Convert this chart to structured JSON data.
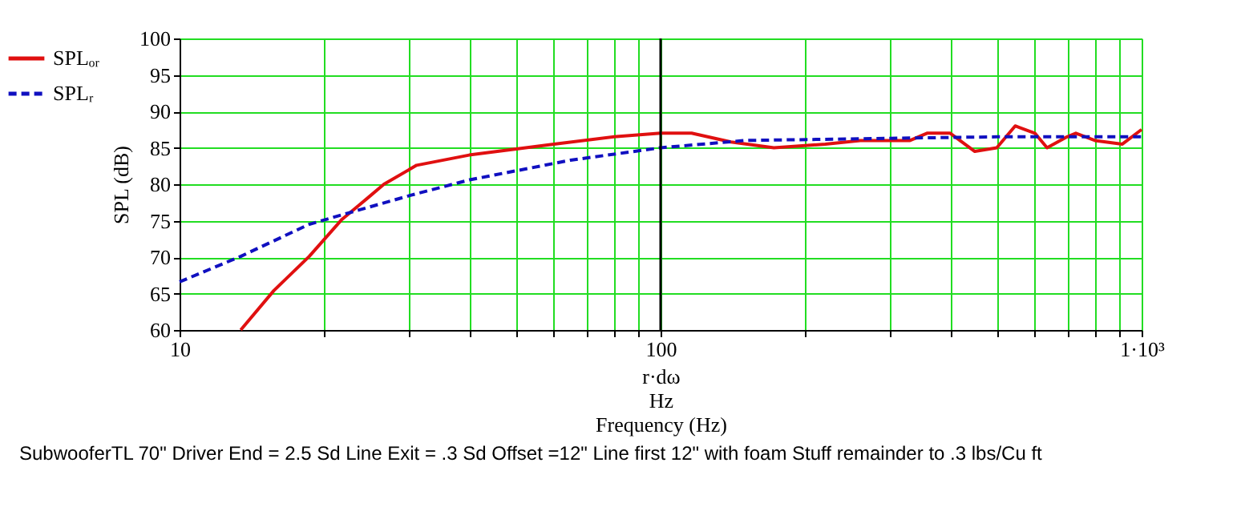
{
  "chart_data": {
    "type": "line",
    "xlabel": "r·dω\nHz\nFrequency (Hz)",
    "ylabel": "SPL (dB)",
    "annotations": [
      "SubwooferTL  70\" Driver End = 2.5 Sd Line Exit = .3 Sd Offset =12\" Line first 12\" with foam Stuff remainder to .3 lbs/Cu ft"
    ],
    "log": "x",
    "grid": true,
    "legend": "left",
    "marker": "none",
    "xlim": [
      10,
      1000
    ],
    "ylim": [
      60,
      100
    ],
    "xticks": [
      10,
      {
        "value": 20,
        "label": null
      },
      {
        "value": 30,
        "label": null
      },
      {
        "value": 40,
        "label": null
      },
      {
        "value": 50,
        "label": null
      },
      {
        "value": 60,
        "label": null
      },
      {
        "value": 70,
        "label": null
      },
      {
        "value": 80,
        "label": null
      },
      {
        "value": 90,
        "label": null
      },
      100,
      {
        "value": 200,
        "label": null
      },
      {
        "value": 300,
        "label": null
      },
      {
        "value": 400,
        "label": null
      },
      {
        "value": 500,
        "label": null
      },
      {
        "value": 600,
        "label": null
      },
      {
        "value": 700,
        "label": null
      },
      {
        "value": 800,
        "label": null
      },
      {
        "value": 900,
        "label": null
      },
      {
        "value": 1000,
        "label": "1·10³"
      }
    ],
    "yticks": [
      60,
      65,
      70,
      75,
      80,
      85,
      90,
      95,
      100
    ],
    "ref_lines": [
      {
        "axis": "x",
        "value": 100,
        "color": "#000000"
      }
    ],
    "series": [
      {
        "name": "SPLₒᵣ",
        "color": "#e01010",
        "line_style": "solid",
        "x": [
          13.4,
          15.7,
          18.6,
          21.7,
          24.7,
          26.6,
          31.1,
          40,
          60,
          80,
          100,
          116,
          140,
          172,
          220,
          260,
          330,
          358,
          400,
          450,
          500,
          546,
          600,
          636,
          700,
          730,
          800,
          912,
          1000
        ],
        "values": [
          60,
          65.4,
          70.1,
          75.1,
          78.2,
          80,
          82.6,
          84,
          85.5,
          86.5,
          87,
          87,
          85.8,
          85,
          85.5,
          86,
          86,
          87,
          87,
          84.5,
          85,
          88,
          87,
          85,
          86.5,
          87,
          86,
          85.5,
          87.5
        ]
      },
      {
        "name": "SPLᵣ",
        "color": "#1010c0",
        "line_style": "dashed",
        "x": [
          10,
          13.4,
          18.6,
          22.3,
          30.3,
          40.1,
          65,
          100,
          150,
          300,
          500,
          1000
        ],
        "values": [
          66.6,
          70.1,
          74.5,
          76,
          78.5,
          80.6,
          83.3,
          85,
          86,
          86.3,
          86.5,
          86.5
        ]
      }
    ]
  }
}
